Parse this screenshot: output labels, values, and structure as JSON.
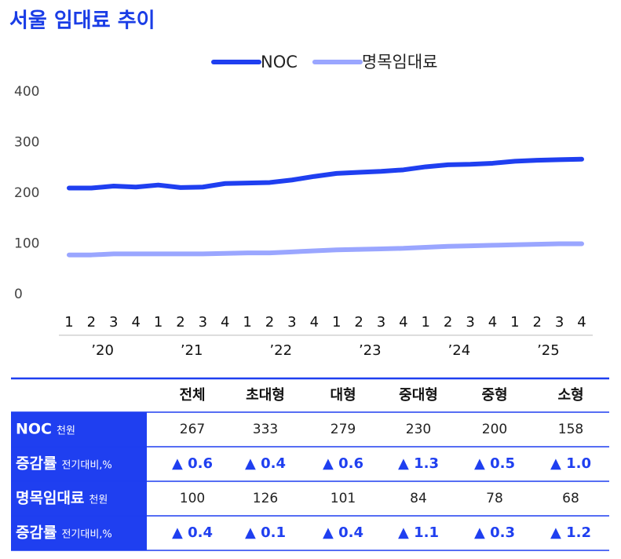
{
  "chart_data": {
    "type": "line",
    "title": "서울 임대료 추이",
    "categories": [
      "1",
      "2",
      "3",
      "4",
      "1",
      "2",
      "3",
      "4",
      "1",
      "2",
      "3",
      "4",
      "1",
      "2",
      "3",
      "4",
      "1",
      "2",
      "3",
      "4",
      "1",
      "2",
      "3",
      "4"
    ],
    "year_labels": [
      "’20",
      "’21",
      "’22",
      "’23",
      "’24",
      "’25"
    ],
    "series": [
      {
        "name": "NOC",
        "color": "#1f3ff0",
        "values": [
          210,
          210,
          214,
          212,
          216,
          211,
          212,
          219,
          220,
          221,
          226,
          233,
          239,
          241,
          243,
          246,
          252,
          256,
          257,
          259,
          263,
          265,
          266,
          267
        ]
      },
      {
        "name": "명목임대료",
        "color": "#9aa6ff",
        "values": [
          78,
          78,
          80,
          80,
          80,
          80,
          80,
          81,
          82,
          82,
          84,
          86,
          88,
          89,
          90,
          91,
          93,
          95,
          96,
          97,
          98,
          99,
          100,
          100
        ]
      }
    ],
    "ylim": [
      0,
      400
    ],
    "yticks": [
      0,
      100,
      200,
      300,
      400
    ],
    "grid": false,
    "legend": "top"
  },
  "table": {
    "columns": [
      "전체",
      "초대형",
      "대형",
      "중대형",
      "중형",
      "소형"
    ],
    "rows": [
      {
        "label": "NOC",
        "unit": "천원",
        "cells": [
          267,
          333,
          279,
          230,
          200,
          158
        ]
      },
      {
        "label": "증감률",
        "unit": "전기대비,%",
        "cells": [
          "▲ 0.6",
          "▲ 0.4",
          "▲ 0.6",
          "▲ 1.3",
          "▲ 0.5",
          "▲ 1.0"
        ]
      },
      {
        "label": "명목임대료",
        "unit": "천원",
        "cells": [
          100,
          126,
          101,
          84,
          78,
          68
        ]
      },
      {
        "label": "증감률",
        "unit": "전기대비,%",
        "cells": [
          "▲ 0.4",
          "▲ 0.1",
          "▲ 0.4",
          "▲ 1.1",
          "▲ 0.3",
          "▲ 1.2"
        ]
      }
    ]
  }
}
